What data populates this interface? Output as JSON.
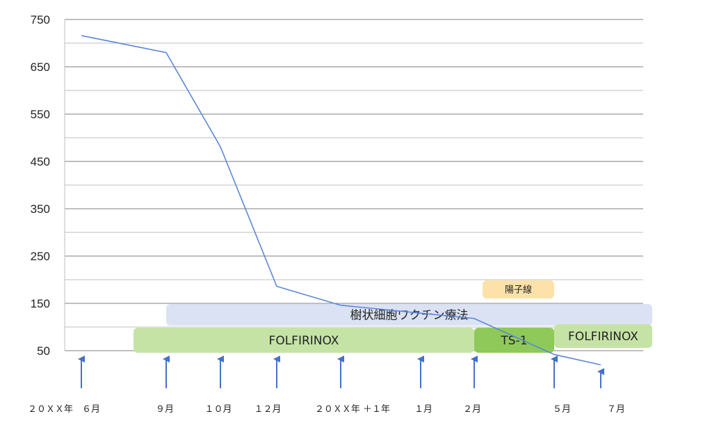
{
  "chart_data": {
    "type": "line",
    "title": "",
    "xlabel": "",
    "ylabel": "",
    "ylim": [
      50,
      750
    ],
    "yticks": [
      50,
      150,
      250,
      350,
      450,
      550,
      650,
      750
    ],
    "y_minor_step": 50,
    "grid": true,
    "x": [
      "20XX年 6月",
      "9月",
      "10月",
      "12月",
      "20XX年＋1年",
      "1月",
      "2月",
      "5月",
      "7月"
    ],
    "x_labels": [
      "２０ＸＸ年　６月",
      "９月",
      "１０月",
      "１２月",
      "２０ＸＸ年 ＋１年",
      "１月",
      "２月",
      "５月",
      "７月"
    ],
    "series": [
      {
        "color": "#5b87d6",
        "points": [
          {
            "x": "20XX年 6月",
            "y": 716
          },
          {
            "x": "9月",
            "y": 680
          },
          {
            "x": "10月",
            "y": 481
          },
          {
            "x": "12月",
            "y": 186
          },
          {
            "x": "20XX年＋1年",
            "y": 146
          },
          {
            "x": "2月",
            "y": 118
          },
          {
            "x": "5月",
            "y": 42
          },
          {
            "x": "7月",
            "y": 20
          }
        ]
      }
    ],
    "treatments": [
      {
        "label": "樹状細胞ワクチン療法",
        "from": "9月",
        "to": "7月+",
        "row": "upper",
        "color": "#dbe2f3"
      },
      {
        "label": "FOLFIRINOX",
        "from": "9月−",
        "to": "2月",
        "row": "lower",
        "color": "#c6e3a6"
      },
      {
        "label": "TS-1",
        "from": "2月",
        "to": "5月",
        "row": "lower",
        "color": "#8ec95a"
      },
      {
        "label": "FOLFIRINOX",
        "from": "5月",
        "to": "7月+",
        "row": "lower-raised",
        "color": "#c6e3a6"
      },
      {
        "label": "陽子線",
        "from": "2月+",
        "to": "5月",
        "row": "top",
        "color": "#fce2a8"
      }
    ],
    "event_markers": [
      "20XX年 6月",
      "9月",
      "10月",
      "12月",
      "20XX年＋1年",
      "1月",
      "2月",
      "5月",
      "7月"
    ],
    "marker_color": "#4472c4"
  }
}
